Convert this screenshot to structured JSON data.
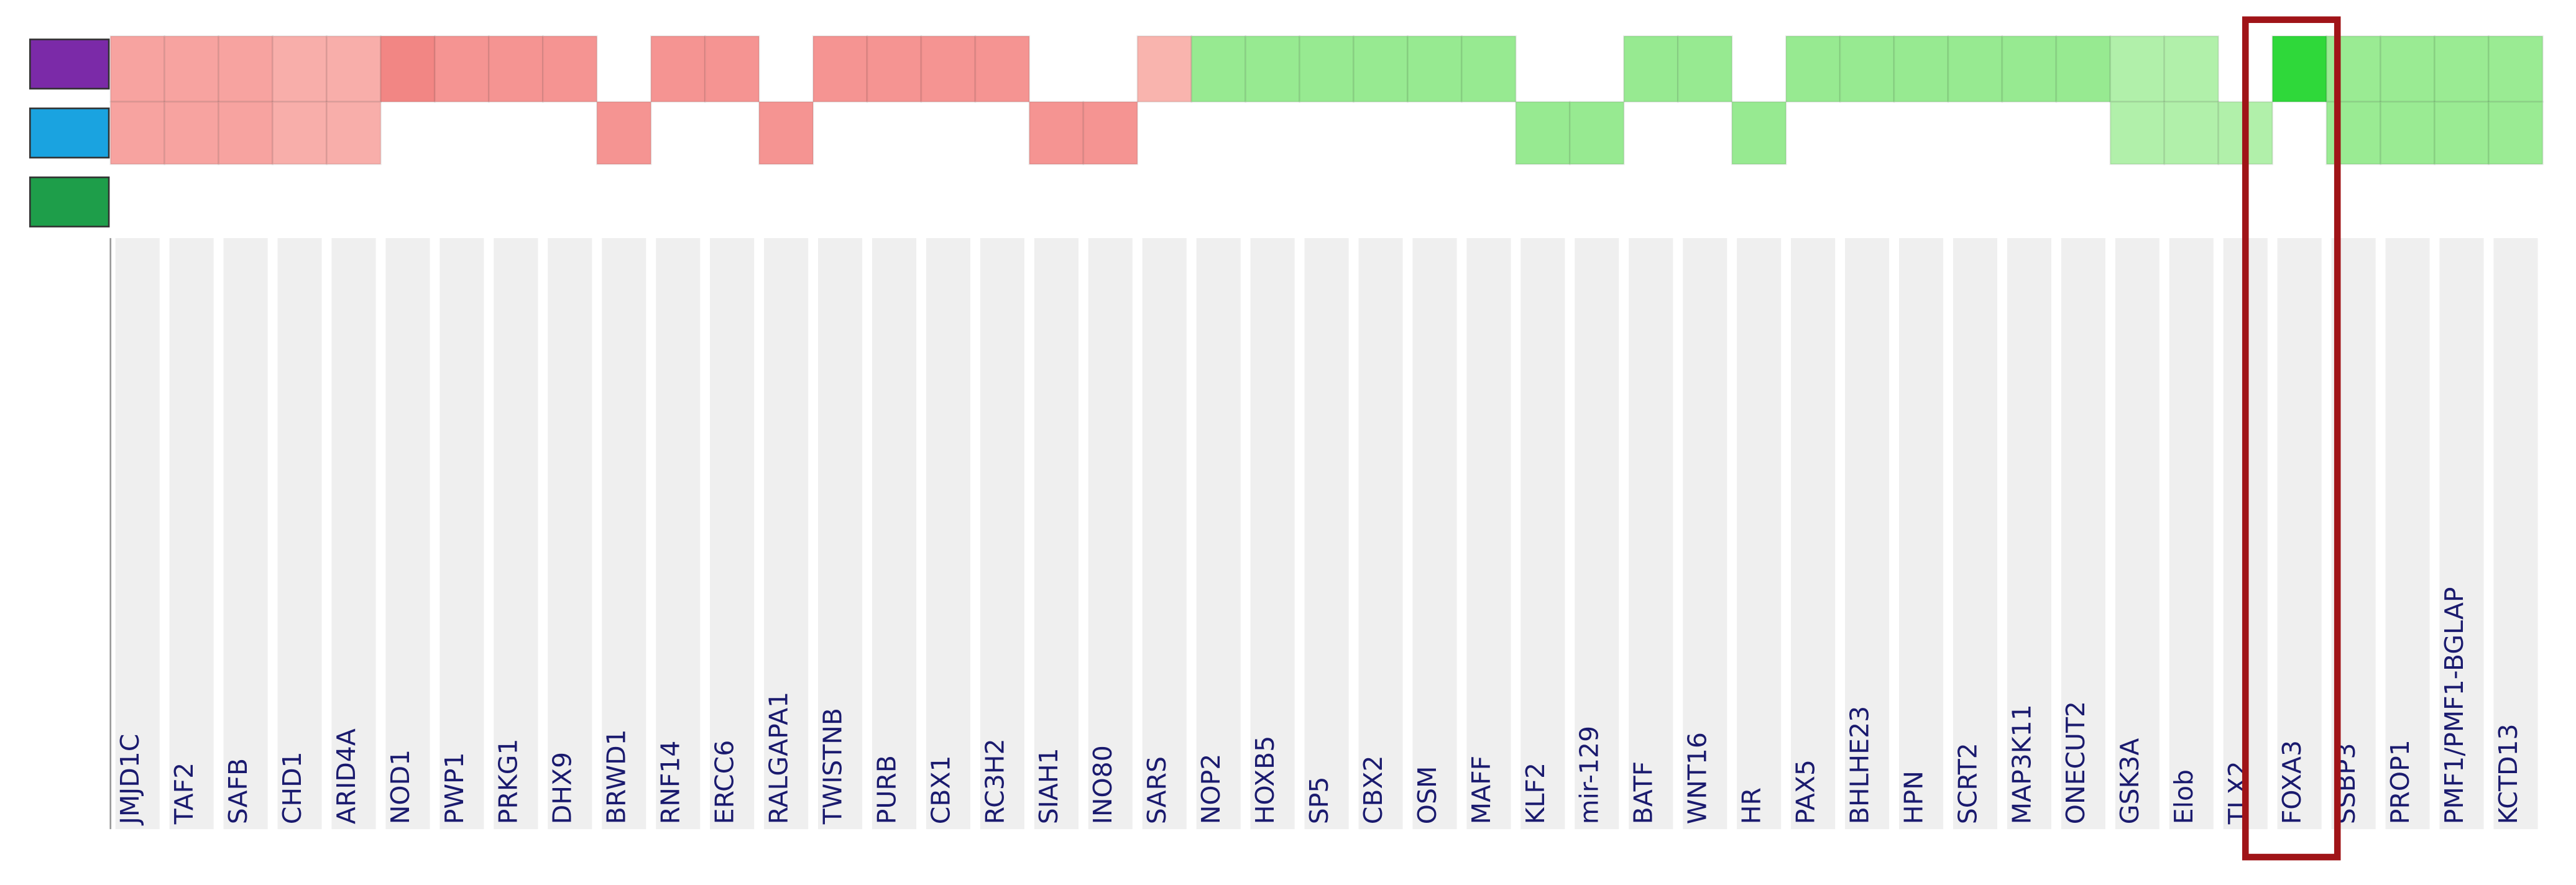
{
  "genes": [
    "JMJD1C",
    "TAF2",
    "SAFB",
    "CHD1",
    "ARID4A",
    "NOD1",
    "PWP1",
    "PRKG1",
    "DHX9",
    "BRWD1",
    "RNF14",
    "ERCC6",
    "RALGAPA1",
    "TWISTNB",
    "PURB",
    "CBX1",
    "RC3H2",
    "SIAH1",
    "INO80",
    "SARS",
    "NOP2",
    "HOXB5",
    "SP5",
    "CBX2",
    "OSM",
    "MAFF",
    "KLF2",
    "mir-129",
    "BATF",
    "WNT16",
    "HR",
    "PAX5",
    "BHLHE23",
    "HPN",
    "SCRT2",
    "MAP3K11",
    "ONECUT2",
    "GSK3A",
    "Elob",
    "TLX2",
    "FOXA3",
    "SSBP3",
    "PROP1",
    "PMF1/PMF1-BGLAP",
    "KCTD13"
  ],
  "legend_colors": [
    "#7b2aa8",
    "#1aa3e0",
    "#1e9e4a"
  ],
  "rows": [
    {
      "cells": [
        "#f7a3a0",
        "#f7a3a0",
        "#f7a3a0",
        "#f8aeaa",
        "#f8aeaa",
        "#f28684",
        "#f59492",
        "#f59492",
        "#f59492",
        null,
        "#f59492",
        "#f59492",
        null,
        "#f59492",
        "#f59492",
        "#f59492",
        "#f59492",
        null,
        null,
        "#f9b4ae",
        "#97ea91",
        "#97ea91",
        "#97ea91",
        "#97ea91",
        "#97ea91",
        "#97ea91",
        null,
        null,
        "#97ea91",
        "#97ea91",
        null,
        "#97ea91",
        "#97ea91",
        "#97ea91",
        "#97ea91",
        "#97ea91",
        "#97ea91",
        "#b1f0aa",
        "#b1f0aa",
        null,
        "#2fd83a",
        "#9aeb93",
        "#9aeb93",
        "#9aeb93",
        "#9aeb93"
      ]
    },
    {
      "cells": [
        "#f7a3a0",
        "#f7a3a0",
        "#f7a3a0",
        "#f8aeaa",
        "#f8aeaa",
        null,
        null,
        null,
        null,
        "#f59492",
        null,
        null,
        "#f59492",
        null,
        null,
        null,
        null,
        "#f59492",
        "#f59492",
        null,
        null,
        null,
        null,
        null,
        null,
        null,
        "#97ea91",
        "#97ea91",
        null,
        null,
        "#97ea91",
        null,
        null,
        null,
        null,
        null,
        null,
        "#b1f0aa",
        "#b1f0aa",
        "#b1f0aa",
        null,
        "#9aeb93",
        "#9aeb93",
        "#9aeb93",
        "#9aeb93"
      ]
    }
  ]
}
